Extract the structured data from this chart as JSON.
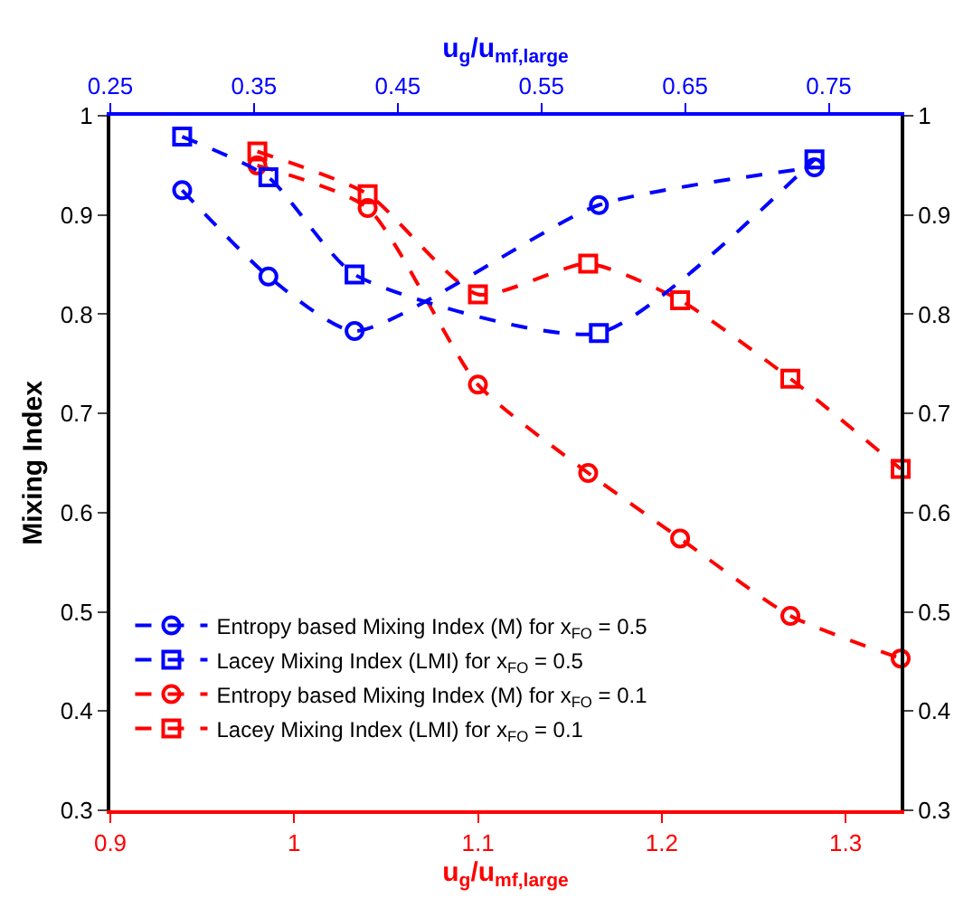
{
  "chart_data": {
    "type": "line",
    "xlabel": "u$_{g}$/u$_{mf,large}$",
    "x2label": "u$_{g}$/u$_{mf,large}$",
    "ylabel": "Mixing Index",
    "xlim": [
      0.9,
      1.33
    ],
    "xticks": [
      0.9,
      1,
      1.1,
      1.2,
      1.3
    ],
    "x2lim": [
      0.25,
      0.8
    ],
    "x2ticks": [
      0.25,
      0.35,
      0.45,
      0.55,
      0.65,
      0.75
    ],
    "ylim": [
      0.3,
      1
    ],
    "yticks": [
      0.3,
      0.4,
      0.5,
      0.6,
      0.7,
      0.8,
      0.9,
      1
    ],
    "y2lim": [
      0.3,
      1
    ],
    "y2ticks": [
      0.3,
      0.4,
      0.5,
      0.6,
      0.7,
      0.8,
      0.9,
      1
    ],
    "legend": "bottom left",
    "line_style": "dashed",
    "series": [
      {
        "name": "Entropy based Mixing Index (M) for x$_{FO}$ = 0.5",
        "color": "#0000ff",
        "axis": "x2",
        "marker": "circle",
        "x": [
          0.3,
          0.36,
          0.42,
          0.59,
          0.74
        ],
        "values": [
          0.925,
          0.838,
          0.783,
          0.91,
          0.948
        ]
      },
      {
        "name": "Lacey Mixing Index (LMI) for x$_{FO}$ = 0.5",
        "color": "#0000ff",
        "axis": "x2",
        "marker": "square",
        "x": [
          0.3,
          0.36,
          0.42,
          0.59,
          0.74
        ],
        "values": [
          0.979,
          0.938,
          0.84,
          0.781,
          0.956
        ]
      },
      {
        "name": "Entropy based Mixing Index (M) for x$_{FO}$ = 0.1",
        "color": "#ff0000",
        "marker": "circle",
        "x": [
          0.98,
          1.04,
          1.1,
          1.16,
          1.21,
          1.27,
          1.33
        ],
        "values": [
          0.95,
          0.907,
          0.729,
          0.64,
          0.574,
          0.496,
          0.453
        ]
      },
      {
        "name": "Lacey Mixing Index (LMI) for x$_{FO}$ = 0.1",
        "color": "#ff0000",
        "marker": "square",
        "x": [
          0.98,
          1.04,
          1.1,
          1.16,
          1.21,
          1.27,
          1.33
        ],
        "values": [
          0.964,
          0.921,
          0.82,
          0.851,
          0.814,
          0.735,
          0.644
        ]
      }
    ]
  }
}
